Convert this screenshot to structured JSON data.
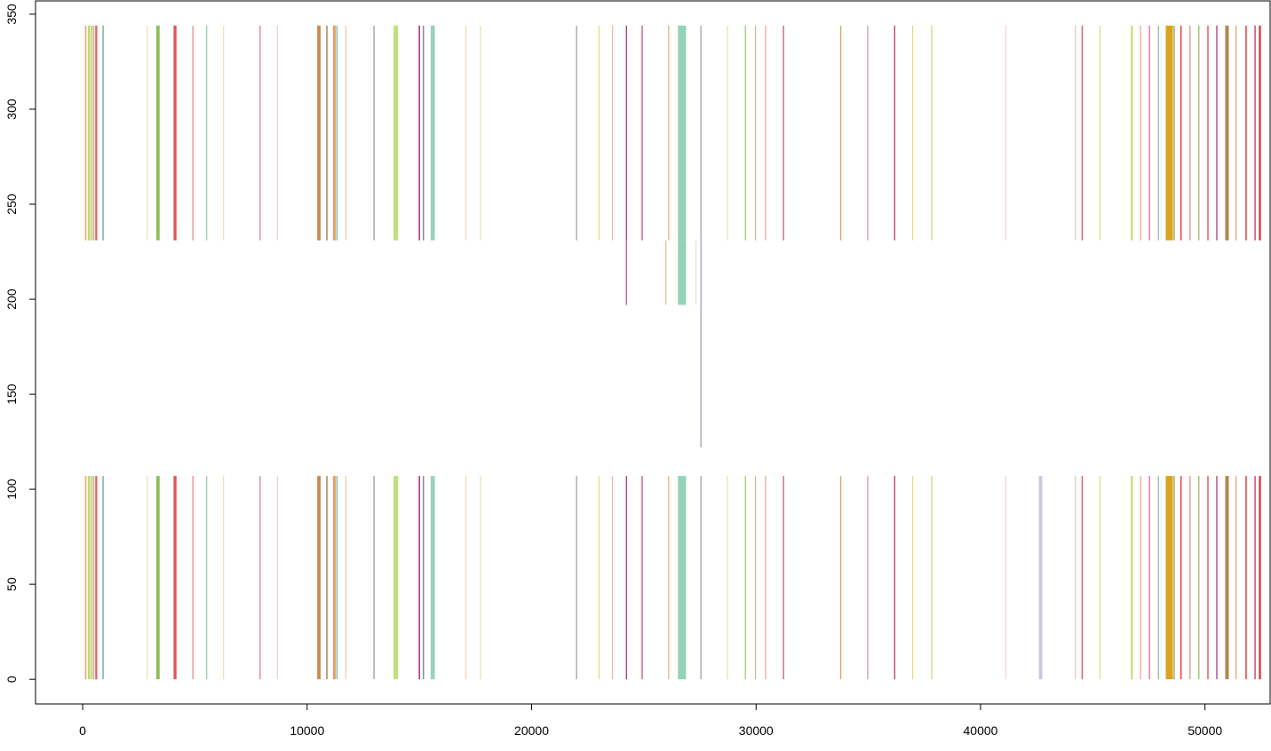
{
  "chart_data": {
    "type": "bar",
    "title": "",
    "xlabel": "",
    "ylabel": "",
    "xlim": [
      -2100,
      52900
    ],
    "ylim": [
      -13,
      357
    ],
    "x_ticks": [
      0,
      10000,
      20000,
      30000,
      40000,
      50000
    ],
    "x_tick_labels": [
      "0",
      "10000",
      "20000",
      "30000",
      "40000",
      "50000"
    ],
    "y_ticks": [
      0,
      50,
      100,
      150,
      200,
      250,
      300,
      350
    ],
    "y_tick_labels": [
      "0",
      "50",
      "100",
      "150",
      "200",
      "250",
      "300",
      "350"
    ],
    "grid": false,
    "legend": "none",
    "bands": [
      {
        "y0": 0,
        "y1": 107
      },
      {
        "y0": 231,
        "y1": 344
      }
    ],
    "segments": [
      {
        "x": 100,
        "w": 70,
        "c": "#e8b07a",
        "b": [
          1,
          1
        ]
      },
      {
        "x": 230,
        "w": 110,
        "c": "#c3d96b",
        "b": [
          1,
          1
        ]
      },
      {
        "x": 380,
        "w": 60,
        "c": "#9ccf6a",
        "b": [
          1,
          1
        ]
      },
      {
        "x": 470,
        "w": 50,
        "c": "#f0a08a",
        "b": [
          1,
          1
        ]
      },
      {
        "x": 560,
        "w": 90,
        "c": "#e06060",
        "b": [
          1,
          1
        ]
      },
      {
        "x": 880,
        "w": 60,
        "c": "#7fb3a0",
        "b": [
          1,
          1
        ]
      },
      {
        "x": 2850,
        "w": 40,
        "c": "#f5d9b0",
        "b": [
          1,
          1
        ]
      },
      {
        "x": 3280,
        "w": 150,
        "c": "#8fbe5a",
        "b": [
          1,
          1
        ]
      },
      {
        "x": 4050,
        "w": 130,
        "c": "#e05555",
        "b": [
          1,
          1
        ]
      },
      {
        "x": 4880,
        "w": 70,
        "c": "#f2a0a8",
        "b": [
          1,
          1
        ]
      },
      {
        "x": 5500,
        "w": 50,
        "c": "#9dc9b5",
        "b": [
          1,
          1
        ]
      },
      {
        "x": 6250,
        "w": 50,
        "c": "#f3e0b0",
        "b": [
          1,
          1
        ]
      },
      {
        "x": 7880,
        "w": 40,
        "c": "#e07080",
        "b": [
          1,
          1
        ]
      },
      {
        "x": 8650,
        "w": 40,
        "c": "#f5c7cf",
        "b": [
          1,
          1
        ]
      },
      {
        "x": 10450,
        "w": 150,
        "c": "#c98950",
        "b": [
          1,
          1
        ]
      },
      {
        "x": 10850,
        "w": 60,
        "c": "#a08860",
        "b": [
          1,
          1
        ]
      },
      {
        "x": 11150,
        "w": 120,
        "c": "#e8a060",
        "b": [
          1,
          1
        ]
      },
      {
        "x": 11300,
        "w": 60,
        "c": "#7fbfb0",
        "b": [
          1,
          1
        ]
      },
      {
        "x": 11700,
        "w": 50,
        "c": "#e7d59a",
        "b": [
          1,
          1
        ]
      },
      {
        "x": 12950,
        "w": 60,
        "c": "#a9a9a9",
        "b": [
          1,
          1
        ]
      },
      {
        "x": 13850,
        "w": 200,
        "c": "#bde07c",
        "b": [
          1,
          1
        ]
      },
      {
        "x": 14970,
        "w": 60,
        "c": "#b0307a",
        "b": [
          1,
          1
        ]
      },
      {
        "x": 15150,
        "w": 60,
        "c": "#8a8a8a",
        "b": [
          1,
          1
        ]
      },
      {
        "x": 15500,
        "w": 190,
        "c": "#97d3bf",
        "b": [
          1,
          1
        ]
      },
      {
        "x": 17050,
        "w": 40,
        "c": "#f1d6a8",
        "b": [
          1,
          1
        ]
      },
      {
        "x": 17700,
        "w": 40,
        "c": "#dce7a8",
        "b": [
          1,
          1
        ]
      },
      {
        "x": 21980,
        "w": 40,
        "c": "#9a9aaa",
        "b": [
          1,
          1
        ]
      },
      {
        "x": 22980,
        "w": 40,
        "c": "#f3d27a",
        "b": [
          1,
          1
        ]
      },
      {
        "x": 23580,
        "w": 40,
        "c": "#f0b6a0",
        "b": [
          1,
          1
        ]
      },
      {
        "x": 24200,
        "w": 50,
        "c": "#b03070",
        "b": [
          1,
          1
        ]
      },
      {
        "x": 24900,
        "w": 50,
        "c": "#d04a7a",
        "b": [
          1,
          1
        ]
      },
      {
        "x": 26080,
        "w": 50,
        "c": "#e8b07a",
        "b": [
          1,
          1
        ]
      },
      {
        "x": 26520,
        "w": 360,
        "c": "#93d3b8",
        "b": [
          1,
          1
        ]
      },
      {
        "x": 27520,
        "w": 40,
        "c": "#9a9ab0",
        "b": [
          1,
          1
        ]
      },
      {
        "x": 28700,
        "w": 40,
        "c": "#dce7a8",
        "b": [
          1,
          1
        ]
      },
      {
        "x": 29500,
        "w": 50,
        "c": "#9ccf6a",
        "b": [
          1,
          1
        ]
      },
      {
        "x": 29950,
        "w": 40,
        "c": "#e8b07a",
        "b": [
          1,
          1
        ]
      },
      {
        "x": 30400,
        "w": 40,
        "c": "#f0a08a",
        "b": [
          1,
          1
        ]
      },
      {
        "x": 31200,
        "w": 40,
        "c": "#d04a7a",
        "b": [
          1,
          1
        ]
      },
      {
        "x": 33750,
        "w": 40,
        "c": "#e8a060",
        "b": [
          1,
          1
        ]
      },
      {
        "x": 34950,
        "w": 40,
        "c": "#d88aa8",
        "b": [
          1,
          1
        ]
      },
      {
        "x": 36150,
        "w": 50,
        "c": "#c03060",
        "b": [
          1,
          1
        ]
      },
      {
        "x": 36950,
        "w": 40,
        "c": "#f3d27a",
        "b": [
          1,
          1
        ]
      },
      {
        "x": 37800,
        "w": 40,
        "c": "#c3d96b",
        "b": [
          1,
          1
        ]
      },
      {
        "x": 41100,
        "w": 40,
        "c": "#f5d0e0",
        "b": [
          1,
          1
        ]
      },
      {
        "x": 42600,
        "w": 150,
        "c": "#c8c8e0",
        "b": [
          1,
          0
        ]
      },
      {
        "x": 44200,
        "w": 50,
        "c": "#e8c8b8",
        "b": [
          1,
          1
        ]
      },
      {
        "x": 44500,
        "w": 60,
        "c": "#e06070",
        "b": [
          1,
          1
        ]
      },
      {
        "x": 45300,
        "w": 50,
        "c": "#d7e08a",
        "b": [
          1,
          1
        ]
      },
      {
        "x": 46700,
        "w": 80,
        "c": "#c3d96b",
        "b": [
          1,
          1
        ]
      },
      {
        "x": 47100,
        "w": 60,
        "c": "#f0b6a0",
        "b": [
          1,
          1
        ]
      },
      {
        "x": 47500,
        "w": 50,
        "c": "#e0689a",
        "b": [
          1,
          1
        ]
      },
      {
        "x": 47900,
        "w": 50,
        "c": "#7fbfb0",
        "b": [
          1,
          1
        ]
      },
      {
        "x": 48250,
        "w": 320,
        "c": "#d9a520",
        "b": [
          1,
          1
        ]
      },
      {
        "x": 48600,
        "w": 50,
        "c": "#9a9a60",
        "b": [
          1,
          1
        ]
      },
      {
        "x": 48900,
        "w": 60,
        "c": "#e84040",
        "b": [
          1,
          1
        ]
      },
      {
        "x": 49300,
        "w": 60,
        "c": "#f0a08a",
        "b": [
          1,
          1
        ]
      },
      {
        "x": 49700,
        "w": 50,
        "c": "#8fbe5a",
        "b": [
          1,
          1
        ]
      },
      {
        "x": 50100,
        "w": 60,
        "c": "#e06060",
        "b": [
          1,
          1
        ]
      },
      {
        "x": 50500,
        "w": 50,
        "c": "#b0307a",
        "b": [
          1,
          1
        ]
      },
      {
        "x": 50900,
        "w": 160,
        "c": "#b08850",
        "b": [
          1,
          1
        ]
      },
      {
        "x": 51350,
        "w": 60,
        "c": "#e8b07a",
        "b": [
          1,
          1
        ]
      },
      {
        "x": 51800,
        "w": 60,
        "c": "#e84040",
        "b": [
          1,
          1
        ]
      },
      {
        "x": 52200,
        "w": 60,
        "c": "#d04a7a",
        "b": [
          1,
          1
        ]
      },
      {
        "x": 52400,
        "w": 90,
        "c": "#e03030",
        "b": [
          1,
          1
        ]
      }
    ],
    "extensions": [
      {
        "x": 24200,
        "w": 50,
        "c": "#d04a7a",
        "y0": 197,
        "y1": 231
      },
      {
        "x": 25950,
        "w": 60,
        "c": "#e8c8a0",
        "y0": 197,
        "y1": 231
      },
      {
        "x": 26520,
        "w": 360,
        "c": "#93d3b8",
        "y0": 197,
        "y1": 231
      },
      {
        "x": 27300,
        "w": 40,
        "c": "#dde8b8",
        "y0": 197,
        "y1": 231
      },
      {
        "x": 27520,
        "w": 40,
        "c": "#9a9ab0",
        "y0": 122,
        "y1": 231
      }
    ]
  }
}
